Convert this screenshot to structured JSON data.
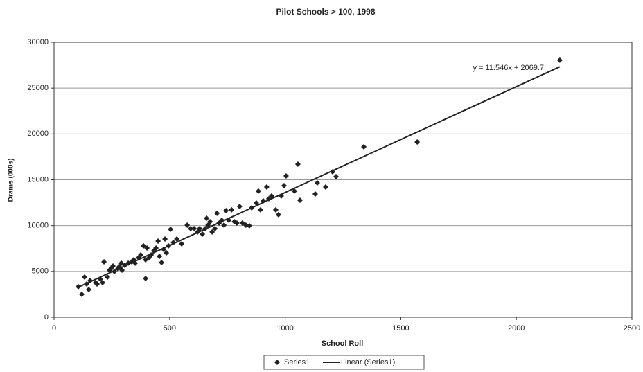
{
  "chart_data": {
    "type": "scatter",
    "title": "Pilot Schools > 100, 1998",
    "x_label": "School Roll",
    "y_label": "Drams (000s)",
    "x": [
      105,
      120,
      132,
      141,
      150,
      156,
      180,
      186,
      200,
      210,
      216,
      231,
      240,
      246,
      255,
      261,
      276,
      282,
      291,
      294,
      306,
      321,
      336,
      345,
      351,
      366,
      375,
      387,
      396,
      396,
      402,
      411,
      420,
      432,
      441,
      450,
      456,
      465,
      474,
      480,
      486,
      495,
      504,
      516,
      531,
      552,
      576,
      591,
      606,
      621,
      630,
      642,
      654,
      660,
      666,
      675,
      684,
      696,
      705,
      714,
      726,
      735,
      744,
      756,
      768,
      780,
      791,
      803,
      815,
      830,
      845,
      855,
      875,
      884,
      893,
      905,
      920,
      929,
      941,
      959,
      971,
      983,
      995,
      1004,
      1040,
      1055,
      1064,
      1130,
      1139,
      1175,
      1205,
      1220,
      1340,
      1571,
      2188
    ],
    "series": [
      {
        "name": "Series1",
        "color": "#222222",
        "values": [
          3330,
          2500,
          4380,
          3630,
          3020,
          4000,
          3780,
          3630,
          4160,
          3780,
          6050,
          4380,
          5140,
          5290,
          5590,
          4990,
          5290,
          5520,
          5900,
          5140,
          5670,
          5900,
          6050,
          6270,
          5900,
          6500,
          6800,
          7790,
          6270,
          4230,
          7560,
          6500,
          6800,
          7260,
          7560,
          8310,
          6650,
          5970,
          7410,
          8540,
          7030,
          7790,
          9600,
          8160,
          8540,
          8010,
          10050,
          9670,
          9670,
          9300,
          9670,
          9070,
          9670,
          10810,
          10050,
          10430,
          9300,
          9670,
          11340,
          10280,
          10580,
          10050,
          11640,
          10580,
          11720,
          10430,
          10280,
          12090,
          10280,
          10050,
          9980,
          11940,
          12470,
          13760,
          11720,
          12700,
          14210,
          12930,
          13230,
          11720,
          11190,
          13230,
          14360,
          15420,
          13760,
          16700,
          12770,
          13450,
          14660,
          14210,
          15870,
          15340,
          18590,
          19120,
          28040
        ]
      }
    ],
    "trendline": {
      "name": "Linear (Series1)",
      "label": "y = 11.546x + 2069.7",
      "slope": 11.546,
      "intercept": 2069.7,
      "color": "#222222"
    },
    "xlim": [
      0,
      2500
    ],
    "xticks": [
      0,
      500,
      1000,
      1500,
      2000,
      2500
    ],
    "ylim": [
      0,
      30000
    ],
    "yticks": [
      0,
      5000,
      10000,
      15000,
      20000,
      25000,
      30000
    ],
    "grid": true,
    "legend": "bottom"
  }
}
